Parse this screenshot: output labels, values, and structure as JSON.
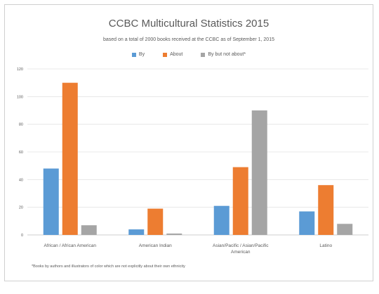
{
  "chart_data": {
    "type": "bar",
    "title": "CCBC Multicultural Statistics 2015",
    "subtitle": "based on a total of 2000 books received at the CCBC as of September 1, 2015",
    "categories": [
      [
        "African / African American"
      ],
      [
        "American Indian"
      ],
      [
        "Asian/Pacific / Asian/Pacific",
        "American"
      ],
      [
        "Latino"
      ]
    ],
    "series": [
      {
        "name": "By",
        "values": [
          48,
          4,
          21,
          17
        ],
        "color": "#5b9bd5"
      },
      {
        "name": "About",
        "values": [
          110,
          19,
          49,
          36
        ],
        "color": "#ed7d31"
      },
      {
        "name": "By but not about*",
        "values": [
          7,
          1,
          90,
          8
        ],
        "color": "#a5a5a5"
      }
    ],
    "ylim": [
      0,
      120
    ],
    "yticks": [
      0,
      20,
      40,
      60,
      80,
      100,
      120
    ],
    "grid": true,
    "legend_position": "top",
    "footnote": "*Books by authors and illustrators of color which are not explicitly about their own ethnicity"
  }
}
